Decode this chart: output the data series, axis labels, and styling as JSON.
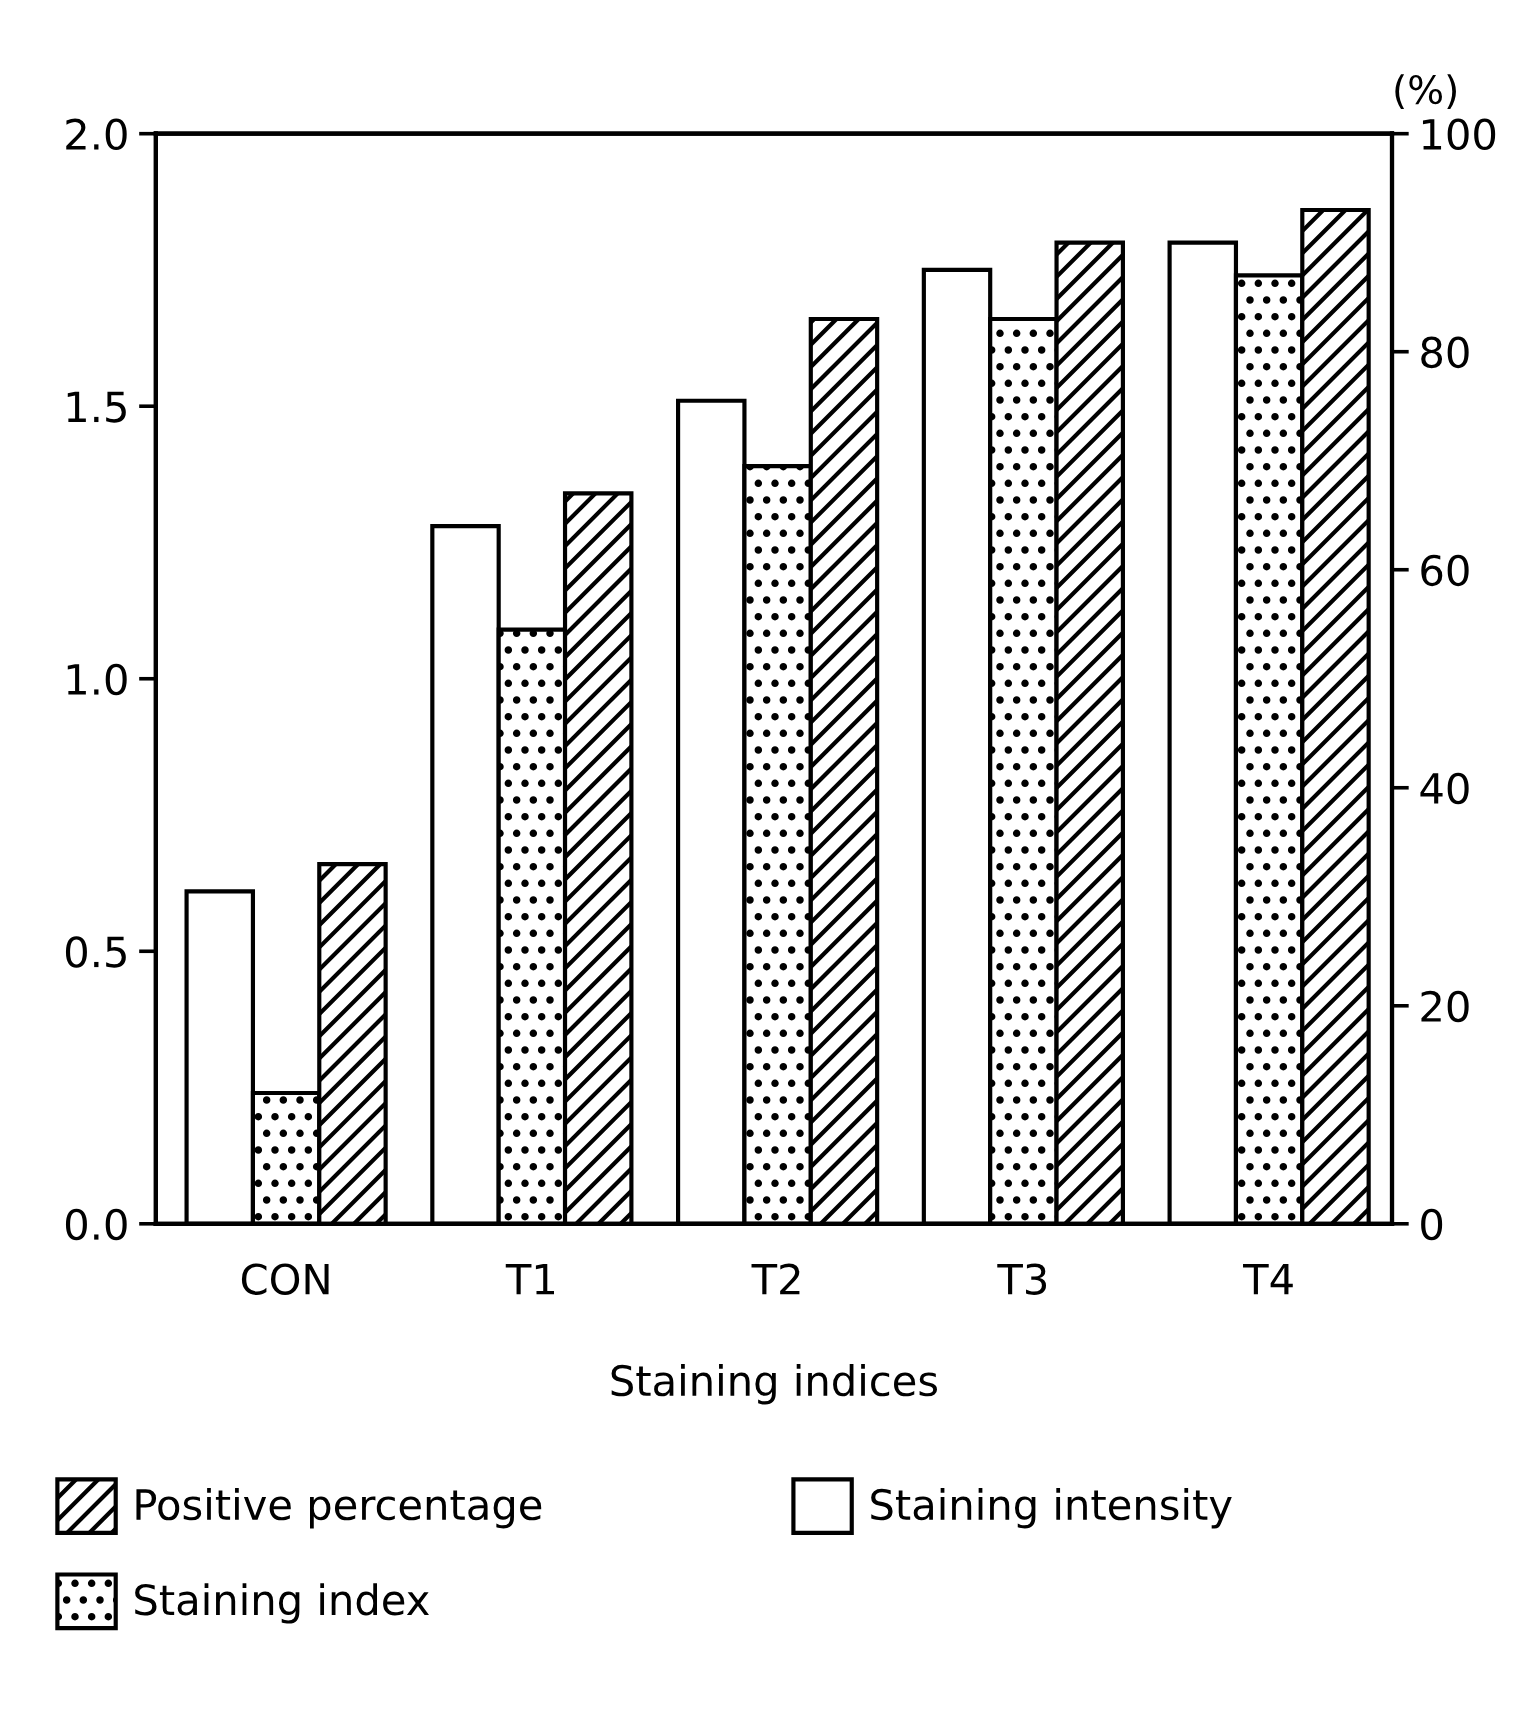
{
  "chart_data": {
    "type": "bar",
    "xlabel": "Staining indices",
    "y2label": "(%)",
    "categories": [
      "CON",
      "T1",
      "T2",
      "T3",
      "T4"
    ],
    "series": [
      {
        "name": "Staining intensity",
        "color": "#ffffff",
        "values": [
          0.61,
          1.28,
          1.51,
          1.75,
          1.8
        ]
      },
      {
        "name": "Staining index",
        "color": "#000000",
        "values": [
          0.24,
          1.09,
          1.39,
          1.66,
          1.74
        ]
      },
      {
        "name": "Positive percentage",
        "color": "#000000",
        "axis": "y2",
        "values": [
          33,
          67,
          83,
          90,
          93
        ]
      }
    ],
    "ylim": [
      0,
      2
    ],
    "yticks": [
      {
        "value": 0,
        "label": "0.0"
      },
      {
        "value": 0.5,
        "label": "0.5"
      },
      {
        "value": 1,
        "label": "1.0"
      },
      {
        "value": 1.5,
        "label": "1.5"
      },
      {
        "value": 2,
        "label": "2.0"
      }
    ],
    "y2lim": [
      0,
      100
    ],
    "y2ticks": [
      0,
      20,
      40,
      60,
      80,
      100
    ],
    "grid": false,
    "legend": "bottom"
  }
}
